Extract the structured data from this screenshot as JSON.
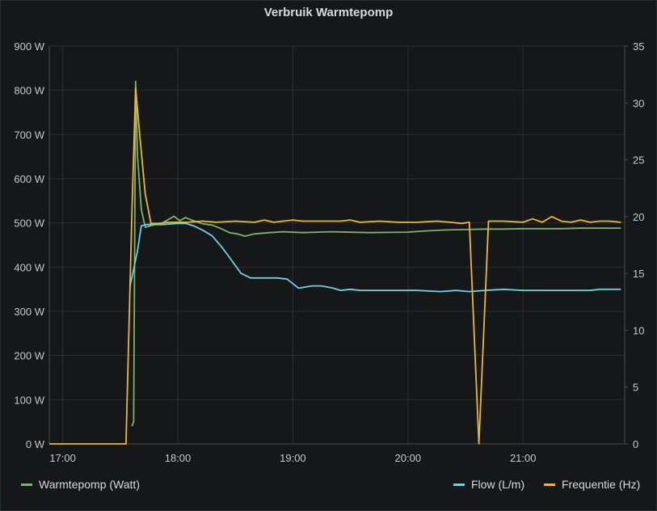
{
  "chart_data": {
    "type": "line",
    "title": "Verbruik Warmtepomp",
    "xlabel": "",
    "ylabel": "",
    "x_ticks": [
      "17:00",
      "18:00",
      "19:00",
      "20:00",
      "21:00"
    ],
    "x_range": [
      "16:53",
      "21:53"
    ],
    "ylim": [
      0,
      900
    ],
    "y_ticks": [
      "0 W",
      "100 W",
      "200 W",
      "300 W",
      "400 W",
      "500 W",
      "600 W",
      "700 W",
      "800 W",
      "900 W"
    ],
    "y2lim": [
      0,
      35
    ],
    "y2_ticks": [
      "0",
      "5",
      "10",
      "15",
      "20",
      "25",
      "30",
      "35"
    ],
    "grid": true,
    "legend_placement": "bottom",
    "series": [
      {
        "name": "Warmtepomp (Watt)",
        "axis": "left",
        "color": "#7eb26d",
        "points": [
          [
            "17:36",
            40
          ],
          [
            "17:37",
            50
          ],
          [
            "17:38",
            820
          ],
          [
            "17:39",
            650
          ],
          [
            "17:41",
            530
          ],
          [
            "17:43",
            490
          ],
          [
            "17:47",
            495
          ],
          [
            "17:52",
            500
          ],
          [
            "17:58",
            515
          ],
          [
            "18:01",
            505
          ],
          [
            "18:04",
            512
          ],
          [
            "18:08",
            505
          ],
          [
            "18:13",
            498
          ],
          [
            "18:18",
            495
          ],
          [
            "18:22",
            488
          ],
          [
            "18:27",
            478
          ],
          [
            "18:31",
            475
          ],
          [
            "18:35",
            470
          ],
          [
            "18:40",
            475
          ],
          [
            "18:48",
            478
          ],
          [
            "18:55",
            480
          ],
          [
            "19:05",
            478
          ],
          [
            "19:20",
            480
          ],
          [
            "19:40",
            478
          ],
          [
            "20:00",
            479
          ],
          [
            "20:10",
            482
          ],
          [
            "20:20",
            484
          ],
          [
            "20:30",
            485
          ],
          [
            "20:40",
            486
          ],
          [
            "20:50",
            486
          ],
          [
            "21:00",
            487
          ],
          [
            "21:10",
            487
          ],
          [
            "21:20",
            487
          ],
          [
            "21:30",
            488
          ],
          [
            "21:40",
            488
          ],
          [
            "21:51",
            488
          ]
        ]
      },
      {
        "name": "Flow (L/m)",
        "axis": "right",
        "color": "#6ed0e0",
        "points": [
          [
            "17:35",
            13.8
          ],
          [
            "17:39",
            17.0
          ],
          [
            "17:41",
            19.2
          ],
          [
            "17:44",
            19.3
          ],
          [
            "17:52",
            19.3
          ],
          [
            "18:00",
            19.4
          ],
          [
            "18:04",
            19.4
          ],
          [
            "18:08",
            19.2
          ],
          [
            "18:13",
            18.8
          ],
          [
            "18:18",
            18.3
          ],
          [
            "18:23",
            17.3
          ],
          [
            "18:27",
            16.4
          ],
          [
            "18:30",
            15.7
          ],
          [
            "18:33",
            15.0
          ],
          [
            "18:38",
            14.6
          ],
          [
            "18:42",
            14.6
          ],
          [
            "18:52",
            14.6
          ],
          [
            "18:57",
            14.5
          ],
          [
            "19:00",
            14.1
          ],
          [
            "19:03",
            13.7
          ],
          [
            "19:10",
            13.9
          ],
          [
            "19:15",
            13.9
          ],
          [
            "19:21",
            13.7
          ],
          [
            "19:25",
            13.5
          ],
          [
            "19:30",
            13.6
          ],
          [
            "19:35",
            13.5
          ],
          [
            "19:50",
            13.5
          ],
          [
            "20:05",
            13.5
          ],
          [
            "20:17",
            13.4
          ],
          [
            "20:25",
            13.5
          ],
          [
            "20:32",
            13.4
          ],
          [
            "20:40",
            13.5
          ],
          [
            "20:50",
            13.6
          ],
          [
            "21:00",
            13.5
          ],
          [
            "21:10",
            13.5
          ],
          [
            "21:20",
            13.5
          ],
          [
            "21:35",
            13.5
          ],
          [
            "21:40",
            13.6
          ],
          [
            "21:51",
            13.6
          ]
        ]
      },
      {
        "name": "Frequentie (Hz)",
        "axis": "right",
        "color": "#eab839",
        "points": [
          [
            "16:53",
            0
          ],
          [
            "17:30",
            0
          ],
          [
            "17:33",
            0
          ],
          [
            "17:36",
            20.0
          ],
          [
            "17:38",
            31.3
          ],
          [
            "17:40",
            27.5
          ],
          [
            "17:43",
            22.0
          ],
          [
            "17:46",
            19.4
          ],
          [
            "17:50",
            19.4
          ],
          [
            "17:55",
            19.5
          ],
          [
            "18:05",
            19.5
          ],
          [
            "18:13",
            19.6
          ],
          [
            "18:20",
            19.5
          ],
          [
            "18:30",
            19.6
          ],
          [
            "18:40",
            19.5
          ],
          [
            "18:45",
            19.7
          ],
          [
            "18:50",
            19.5
          ],
          [
            "18:55",
            19.6
          ],
          [
            "19:00",
            19.7
          ],
          [
            "19:05",
            19.6
          ],
          [
            "19:15",
            19.6
          ],
          [
            "19:25",
            19.6
          ],
          [
            "19:30",
            19.7
          ],
          [
            "19:35",
            19.5
          ],
          [
            "19:45",
            19.6
          ],
          [
            "19:55",
            19.5
          ],
          [
            "20:05",
            19.5
          ],
          [
            "20:15",
            19.6
          ],
          [
            "20:22",
            19.5
          ],
          [
            "20:28",
            19.4
          ],
          [
            "20:32",
            19.5
          ],
          [
            "20:37",
            0
          ],
          [
            "20:42",
            19.6
          ],
          [
            "20:50",
            19.6
          ],
          [
            "21:00",
            19.5
          ],
          [
            "21:05",
            19.8
          ],
          [
            "21:10",
            19.5
          ],
          [
            "21:15",
            20.0
          ],
          [
            "21:20",
            19.6
          ],
          [
            "21:25",
            19.5
          ],
          [
            "21:30",
            19.7
          ],
          [
            "21:35",
            19.5
          ],
          [
            "21:40",
            19.6
          ],
          [
            "21:45",
            19.6
          ],
          [
            "21:51",
            19.5
          ]
        ]
      }
    ]
  }
}
